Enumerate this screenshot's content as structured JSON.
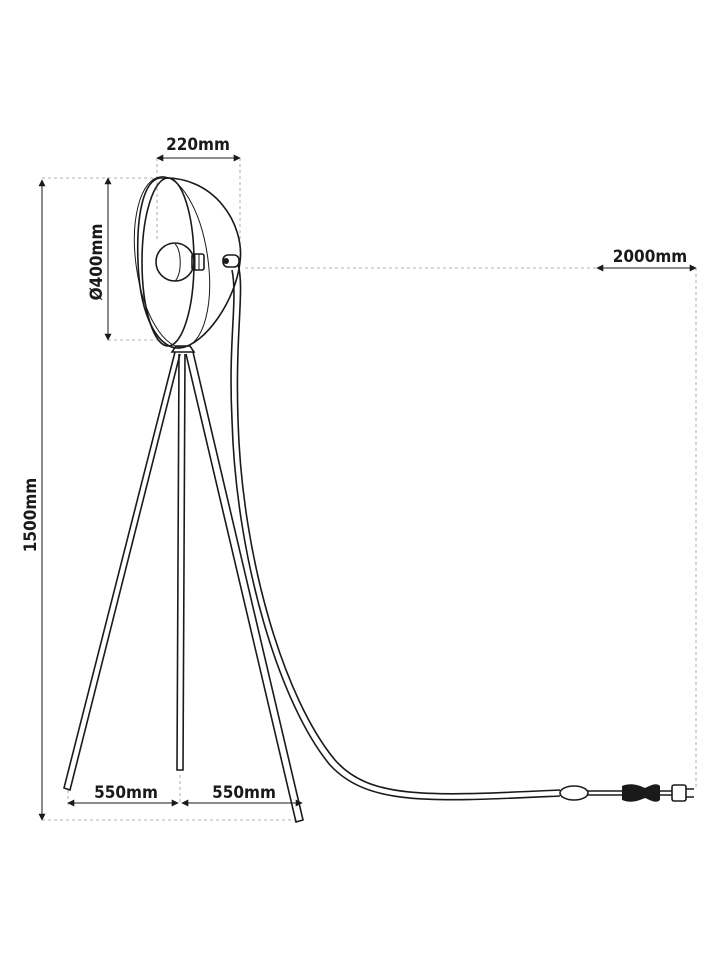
{
  "dimensions": {
    "head_depth": "220mm",
    "diameter": "Ø400mm",
    "height": "1500mm",
    "cable": "2000mm",
    "leg_left": "550mm",
    "leg_right": "550mm"
  }
}
